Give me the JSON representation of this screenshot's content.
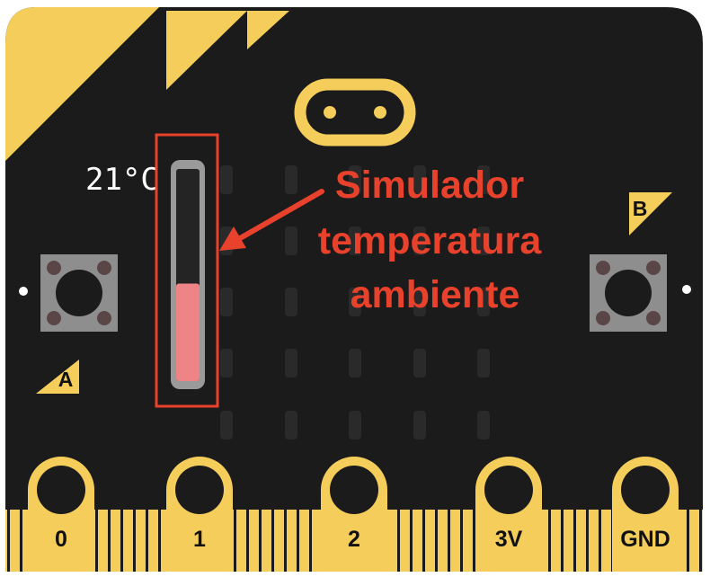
{
  "colors": {
    "board": "#1b1b1b",
    "gold": "#f4cd5a",
    "led_off": "#2a2a2a",
    "thermo_fill": "#ee8486",
    "annotation": "#e8412c"
  },
  "thermometer": {
    "reading_label": "21°C",
    "level": 0.46
  },
  "button_a": {
    "label": "A"
  },
  "button_b": {
    "label": "B"
  },
  "pins": [
    {
      "label": "0"
    },
    {
      "label": "1"
    },
    {
      "label": "2"
    },
    {
      "label": "3V"
    },
    {
      "label": "GND"
    }
  ],
  "annotation": {
    "lines": [
      "Simulador",
      "temperatura",
      "ambiente"
    ]
  }
}
